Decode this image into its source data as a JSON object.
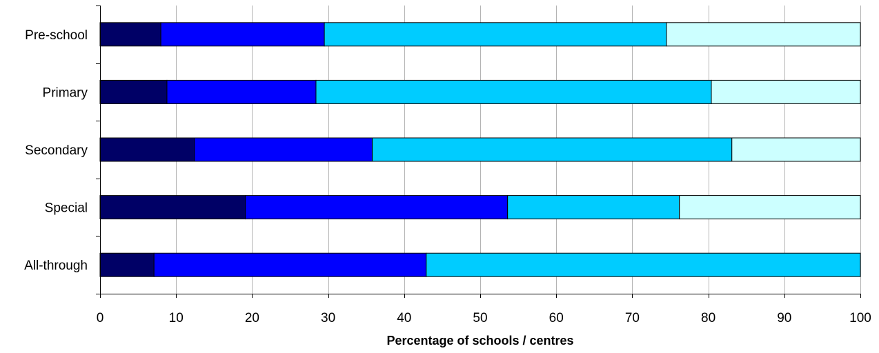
{
  "chart_data": {
    "type": "bar",
    "orientation": "horizontal",
    "stacked": true,
    "categories": [
      "Pre-school",
      "Primary",
      "Secondary",
      "Special",
      "All-through"
    ],
    "series": [
      {
        "color": "#000066",
        "values": [
          8.0,
          8.8,
          12.4,
          19.1,
          7.1
        ]
      },
      {
        "color": "#0000FF",
        "values": [
          21.5,
          19.6,
          23.4,
          34.5,
          35.8
        ]
      },
      {
        "color": "#00CCFF",
        "values": [
          45.0,
          52.0,
          47.3,
          22.6,
          57.1
        ]
      },
      {
        "color": "#CCFFFF",
        "values": [
          25.5,
          19.6,
          16.9,
          23.8,
          0.0
        ]
      }
    ],
    "xlabel": "Percentage of schools / centres",
    "xlim": [
      0,
      100
    ],
    "xticks": [
      "0",
      "10",
      "20",
      "30",
      "40",
      "50",
      "60",
      "70",
      "80",
      "90",
      "100"
    ],
    "grid": "vertical"
  }
}
